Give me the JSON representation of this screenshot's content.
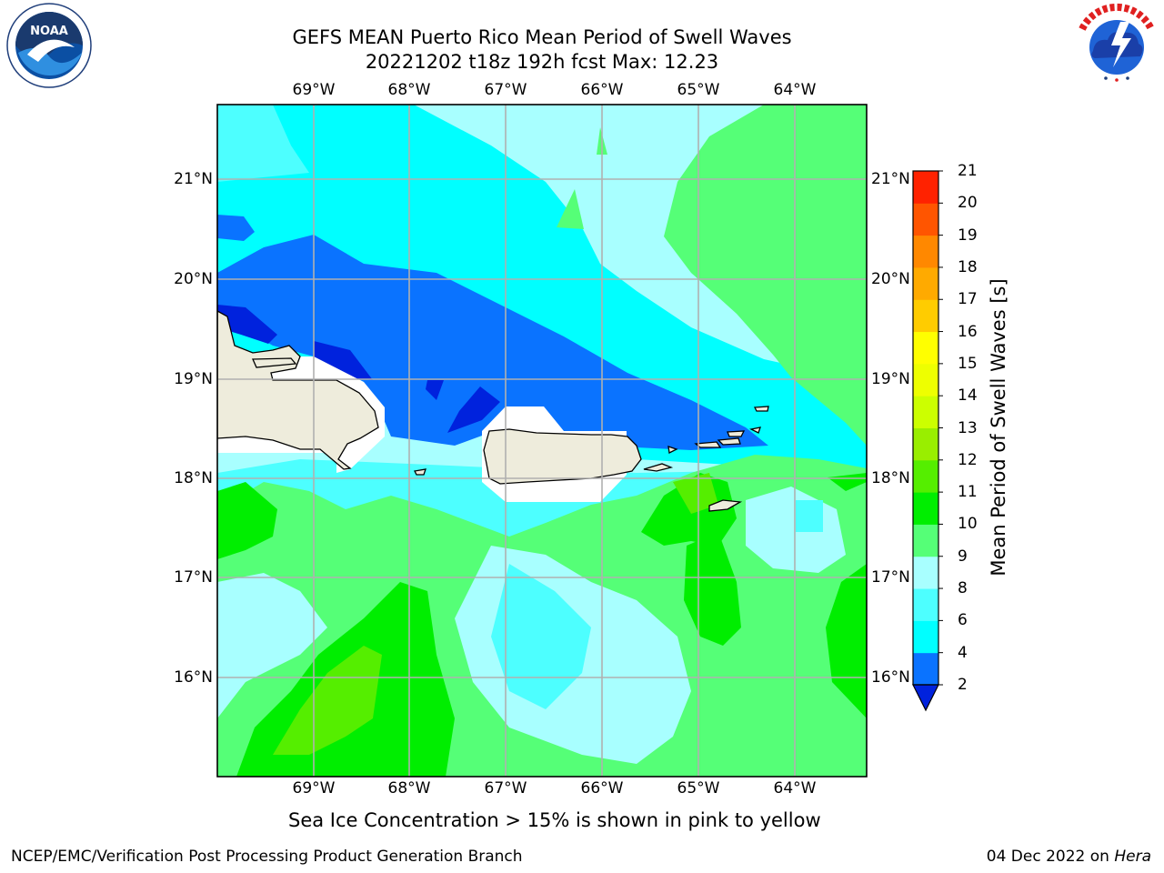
{
  "header": {
    "title_line1": "GEFS MEAN Puerto Rico Mean Period of Swell Waves",
    "title_line2": "20221202 t18z 192h fcst   Max: 12.23"
  },
  "logos": {
    "left": {
      "name": "noaa-logo",
      "text": "NOAA",
      "ring_text": "NATIONAL OCEANIC AND ATMOSPHERIC ADMINISTRATION · U.S. DEPARTMENT OF COMMERCE"
    },
    "right": {
      "name": "nws-logo",
      "ring_text": "NATIONAL WEATHER SERVICE"
    }
  },
  "map": {
    "longitude_labels": [
      "69°W",
      "68°W",
      "67°W",
      "66°W",
      "65°W",
      "64°W"
    ],
    "latitude_labels": [
      "21°N",
      "20°N",
      "19°N",
      "18°N",
      "17°N",
      "16°N"
    ],
    "lon_range": [
      -70.0,
      -63.3
    ],
    "lat_range": [
      15.0,
      21.75
    ],
    "gridlines": true,
    "land": [
      "Hispaniola (east)",
      "Puerto Rico",
      "Virgin Islands"
    ]
  },
  "colorbar": {
    "label": "Mean Period of Swell Waves [s]",
    "ticks": [
      "2",
      "4",
      "6",
      "8",
      "9",
      "10",
      "11",
      "12",
      "13",
      "14",
      "15",
      "16",
      "17",
      "18",
      "19",
      "20",
      "21"
    ],
    "colors": [
      "#0022dd",
      "#0a73ff",
      "#00ffff",
      "#4dffff",
      "#a8ffff",
      "#55ff77",
      "#00ee00",
      "#55ee00",
      "#99ee00",
      "#ccff00",
      "#eeff00",
      "#ffff00",
      "#ffcc00",
      "#ffaa00",
      "#ff8800",
      "#ff5500",
      "#ff2200",
      "#ff0000"
    ],
    "extend": "min"
  },
  "footer": {
    "note": "Sea Ice Concentration > 15% is shown in pink to yellow",
    "credit": "NCEP/EMC/Verification Post Processing Product Generation Branch",
    "date": "04 Dec 2022 on",
    "machine": "Hera"
  }
}
